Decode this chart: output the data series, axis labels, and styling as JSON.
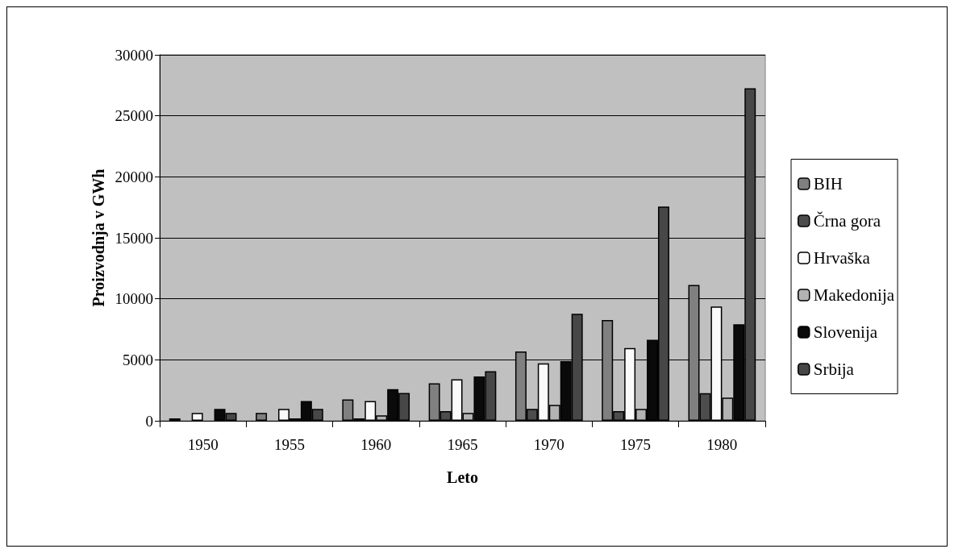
{
  "chart_data": {
    "type": "bar",
    "xlabel": "Leto",
    "ylabel": "Proizvodnja v GWh",
    "categories": [
      "1950",
      "1955",
      "1960",
      "1965",
      "1970",
      "1975",
      "1980"
    ],
    "series": [
      {
        "name": "BIH",
        "color": "#808080",
        "values": [
          200,
          650,
          1750,
          3080,
          5690,
          8260,
          11140
        ]
      },
      {
        "name": "Črna gora",
        "color": "#4d4d4d",
        "values": [
          null,
          null,
          200,
          800,
          980,
          800,
          2260
        ]
      },
      {
        "name": "Hrvaška",
        "color": "#fafafa",
        "values": [
          650,
          970,
          1620,
          3410,
          4710,
          5970,
          9370
        ]
      },
      {
        "name": "Makedonija",
        "color": "#b3b3b3",
        "values": [
          null,
          200,
          450,
          650,
          1300,
          970,
          1900
        ]
      },
      {
        "name": "Slovenija",
        "color": "#0a0a0a",
        "values": [
          970,
          1620,
          2590,
          3630,
          4890,
          6640,
          7910
        ]
      },
      {
        "name": "Srbija",
        "color": "#474747",
        "values": [
          650,
          970,
          2280,
          4060,
          8780,
          17560,
          27260
        ]
      }
    ],
    "ylim": [
      0,
      30000
    ],
    "yticks": [
      0,
      5000,
      10000,
      15000,
      20000,
      25000,
      30000
    ],
    "grid": "y",
    "legend": "right"
  }
}
